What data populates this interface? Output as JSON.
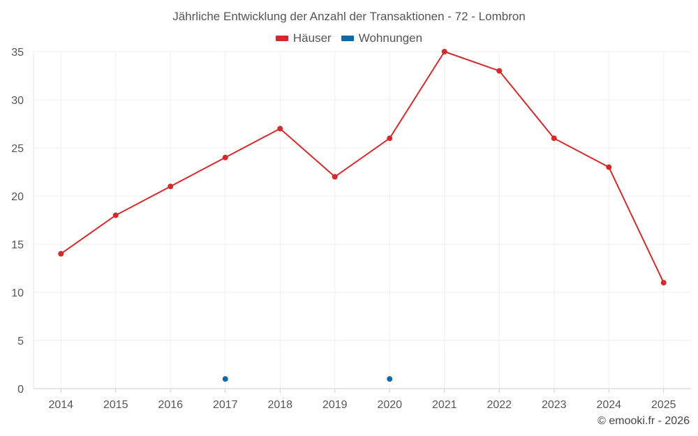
{
  "chart_data": {
    "type": "line",
    "title": "Jährliche Entwicklung der Anzahl der Transaktionen - 72 - Lombron",
    "categories": [
      "2014",
      "2015",
      "2016",
      "2017",
      "2018",
      "2019",
      "2020",
      "2021",
      "2022",
      "2023",
      "2024",
      "2025"
    ],
    "series": [
      {
        "name": "Häuser",
        "color": "#d42a2a",
        "values": [
          14,
          18,
          21,
          24,
          27,
          22,
          26,
          35,
          33,
          26,
          23,
          11
        ]
      },
      {
        "name": "Wohnungen",
        "color": "#0d6aa8",
        "values": [
          null,
          null,
          null,
          1,
          null,
          null,
          1,
          null,
          null,
          null,
          null,
          null
        ]
      }
    ],
    "xlabel": "",
    "ylabel": "",
    "ylim": [
      0,
      35
    ],
    "yticks": [
      0,
      5,
      10,
      15,
      20,
      25,
      30,
      35
    ],
    "grid": true,
    "legend_position": "top-center"
  },
  "footer": {
    "copyright": "© emooki.fr - 2026"
  }
}
